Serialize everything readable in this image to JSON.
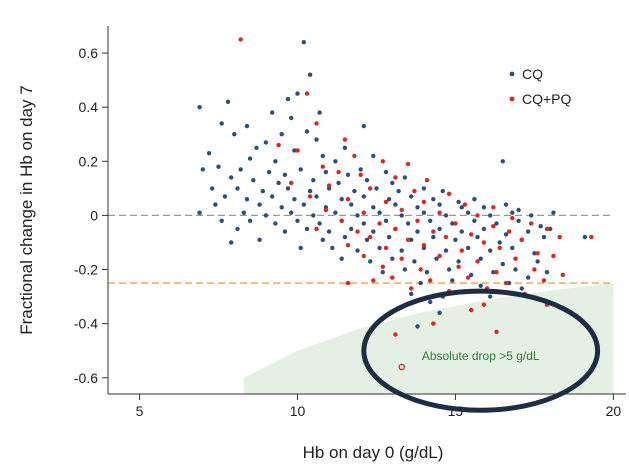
{
  "chart_data": {
    "type": "scatter",
    "title": "",
    "xlabel": "Hb on day 0 (g/dL)",
    "ylabel": "Fractional change in Hb on day 7",
    "xlim": [
      4,
      20.4
    ],
    "ylim": [
      -0.66,
      0.7
    ],
    "x_ticks": [
      5,
      10,
      15,
      20
    ],
    "y_ticks": [
      0.6,
      0.4,
      0.2,
      0,
      -0.2,
      -0.4,
      -0.6
    ],
    "x_tick_labels": [
      "5",
      "10",
      "15",
      "20"
    ],
    "y_tick_labels": [
      "0.6",
      "0.4",
      "0.2",
      "0",
      "-0.2",
      "-0.4",
      "-0.6"
    ],
    "grid": false,
    "legend_position": "top-right",
    "series": [
      {
        "name": "CQ",
        "color": "#2b4f7a",
        "points": [
          [
            10.2,
            0.64
          ],
          [
            10.4,
            0.52
          ],
          [
            10.0,
            0.45
          ],
          [
            9.7,
            0.43
          ],
          [
            7.8,
            0.42
          ],
          [
            6.9,
            0.4
          ],
          [
            9.2,
            0.38
          ],
          [
            9.8,
            0.36
          ],
          [
            10.7,
            0.38
          ],
          [
            8.4,
            0.33
          ],
          [
            9.5,
            0.3
          ],
          [
            10.3,
            0.31
          ],
          [
            7.6,
            0.34
          ],
          [
            8.0,
            0.3
          ],
          [
            10.6,
            0.28
          ],
          [
            12.1,
            0.33
          ],
          [
            9.0,
            0.27
          ],
          [
            8.7,
            0.25
          ],
          [
            11.5,
            0.25
          ],
          [
            9.9,
            0.24
          ],
          [
            7.2,
            0.23
          ],
          [
            8.5,
            0.21
          ],
          [
            9.3,
            0.2
          ],
          [
            10.8,
            0.22
          ],
          [
            11.2,
            0.2
          ],
          [
            12.4,
            0.22
          ],
          [
            16.5,
            0.2
          ],
          [
            7.5,
            0.18
          ],
          [
            8.2,
            0.17
          ],
          [
            9.1,
            0.16
          ],
          [
            9.6,
            0.15
          ],
          [
            10.1,
            0.17
          ],
          [
            10.9,
            0.16
          ],
          [
            11.6,
            0.15
          ],
          [
            12.0,
            0.17
          ],
          [
            12.8,
            0.16
          ],
          [
            7.0,
            0.17
          ],
          [
            7.9,
            0.14
          ],
          [
            8.6,
            0.13
          ],
          [
            9.4,
            0.12
          ],
          [
            10.5,
            0.13
          ],
          [
            11.3,
            0.12
          ],
          [
            12.2,
            0.13
          ],
          [
            13.0,
            0.12
          ],
          [
            13.4,
            0.14
          ],
          [
            7.3,
            0.1
          ],
          [
            8.1,
            0.1
          ],
          [
            8.9,
            0.09
          ],
          [
            9.7,
            0.1
          ],
          [
            10.4,
            0.09
          ],
          [
            11.0,
            0.1
          ],
          [
            11.8,
            0.09
          ],
          [
            12.5,
            0.1
          ],
          [
            13.2,
            0.09
          ],
          [
            14.0,
            0.1
          ],
          [
            14.6,
            0.09
          ],
          [
            7.7,
            0.07
          ],
          [
            8.4,
            0.06
          ],
          [
            9.2,
            0.07
          ],
          [
            9.9,
            0.06
          ],
          [
            10.6,
            0.07
          ],
          [
            11.4,
            0.06
          ],
          [
            12.1,
            0.07
          ],
          [
            12.9,
            0.06
          ],
          [
            13.6,
            0.07
          ],
          [
            14.3,
            0.06
          ],
          [
            15.1,
            0.05
          ],
          [
            15.6,
            0.06
          ],
          [
            7.4,
            0.04
          ],
          [
            8.8,
            0.04
          ],
          [
            9.5,
            0.03
          ],
          [
            10.2,
            0.04
          ],
          [
            10.9,
            0.03
          ],
          [
            11.7,
            0.04
          ],
          [
            12.4,
            0.03
          ],
          [
            13.1,
            0.04
          ],
          [
            13.8,
            0.03
          ],
          [
            14.5,
            0.04
          ],
          [
            15.2,
            0.03
          ],
          [
            15.9,
            0.03
          ],
          [
            16.6,
            0.04
          ],
          [
            17.0,
            0.02
          ],
          [
            6.9,
            0.01
          ],
          [
            8.3,
            0.01
          ],
          [
            9.0,
            0.0
          ],
          [
            9.8,
            0.01
          ],
          [
            10.5,
            0.0
          ],
          [
            11.2,
            0.01
          ],
          [
            11.9,
            0.0
          ],
          [
            12.6,
            0.01
          ],
          [
            13.3,
            0.0
          ],
          [
            14.0,
            0.01
          ],
          [
            14.7,
            0.0
          ],
          [
            15.4,
            0.01
          ],
          [
            16.1,
            0.0
          ],
          [
            16.8,
            0.01
          ],
          [
            17.4,
            0.0
          ],
          [
            18.1,
            0.01
          ],
          [
            7.6,
            -0.02
          ],
          [
            8.5,
            -0.02
          ],
          [
            9.3,
            -0.03
          ],
          [
            10.0,
            -0.02
          ],
          [
            10.7,
            -0.03
          ],
          [
            11.4,
            -0.02
          ],
          [
            12.1,
            -0.03
          ],
          [
            12.8,
            -0.02
          ],
          [
            13.5,
            -0.03
          ],
          [
            14.2,
            -0.02
          ],
          [
            14.9,
            -0.03
          ],
          [
            15.6,
            -0.02
          ],
          [
            16.3,
            -0.03
          ],
          [
            17.0,
            -0.02
          ],
          [
            17.7,
            -0.04
          ],
          [
            8.1,
            -0.05
          ],
          [
            9.6,
            -0.06
          ],
          [
            10.3,
            -0.05
          ],
          [
            11.0,
            -0.06
          ],
          [
            11.7,
            -0.05
          ],
          [
            12.4,
            -0.06
          ],
          [
            13.1,
            -0.05
          ],
          [
            13.8,
            -0.06
          ],
          [
            14.5,
            -0.05
          ],
          [
            15.2,
            -0.06
          ],
          [
            15.9,
            -0.05
          ],
          [
            16.6,
            -0.07
          ],
          [
            17.3,
            -0.06
          ],
          [
            18.0,
            -0.05
          ],
          [
            7.9,
            -0.1
          ],
          [
            8.8,
            -0.09
          ],
          [
            10.8,
            -0.09
          ],
          [
            11.5,
            -0.08
          ],
          [
            12.2,
            -0.09
          ],
          [
            12.9,
            -0.08
          ],
          [
            13.6,
            -0.09
          ],
          [
            14.3,
            -0.08
          ],
          [
            15.0,
            -0.09
          ],
          [
            15.7,
            -0.08
          ],
          [
            16.4,
            -0.1
          ],
          [
            17.1,
            -0.09
          ],
          [
            17.8,
            -0.08
          ],
          [
            19.1,
            -0.08
          ],
          [
            10.1,
            -0.12
          ],
          [
            11.1,
            -0.12
          ],
          [
            11.9,
            -0.13
          ],
          [
            12.6,
            -0.12
          ],
          [
            13.3,
            -0.13
          ],
          [
            14.0,
            -0.12
          ],
          [
            14.7,
            -0.13
          ],
          [
            15.4,
            -0.12
          ],
          [
            16.1,
            -0.13
          ],
          [
            16.8,
            -0.12
          ],
          [
            17.5,
            -0.14
          ],
          [
            11.4,
            -0.16
          ],
          [
            12.3,
            -0.17
          ],
          [
            13.0,
            -0.16
          ],
          [
            13.7,
            -0.17
          ],
          [
            14.4,
            -0.16
          ],
          [
            15.1,
            -0.17
          ],
          [
            15.8,
            -0.16
          ],
          [
            16.5,
            -0.18
          ],
          [
            17.6,
            -0.17
          ],
          [
            12.7,
            -0.21
          ],
          [
            13.4,
            -0.2
          ],
          [
            14.1,
            -0.21
          ],
          [
            14.8,
            -0.2
          ],
          [
            15.5,
            -0.22
          ],
          [
            16.2,
            -0.21
          ],
          [
            16.9,
            -0.2
          ],
          [
            17.9,
            -0.21
          ],
          [
            13.9,
            -0.25
          ],
          [
            14.9,
            -0.24
          ],
          [
            15.8,
            -0.26
          ],
          [
            16.7,
            -0.25
          ],
          [
            17.3,
            -0.23
          ],
          [
            13.6,
            -0.29
          ],
          [
            14.6,
            -0.3
          ],
          [
            15.3,
            -0.28
          ],
          [
            16.1,
            -0.3
          ],
          [
            17.1,
            -0.27
          ],
          [
            14.2,
            -0.32
          ],
          [
            13.8,
            -0.41
          ],
          [
            14.5,
            -0.36
          ]
        ]
      },
      {
        "name": "CQ+PQ",
        "color": "#e8211c",
        "points": [
          [
            8.2,
            0.65
          ],
          [
            10.3,
            0.45
          ],
          [
            10.6,
            0.34
          ],
          [
            11.5,
            0.28
          ],
          [
            9.4,
            0.26
          ],
          [
            10.0,
            0.24
          ],
          [
            11.8,
            0.22
          ],
          [
            12.7,
            0.2
          ],
          [
            13.5,
            0.19
          ],
          [
            10.8,
            0.18
          ],
          [
            11.3,
            0.16
          ],
          [
            12.0,
            0.15
          ],
          [
            13.1,
            0.14
          ],
          [
            14.1,
            0.13
          ],
          [
            9.8,
            0.12
          ],
          [
            11.0,
            0.11
          ],
          [
            12.3,
            0.1
          ],
          [
            13.7,
            0.09
          ],
          [
            14.8,
            0.08
          ],
          [
            10.4,
            0.07
          ],
          [
            11.6,
            0.06
          ],
          [
            12.8,
            0.05
          ],
          [
            14.0,
            0.05
          ],
          [
            15.3,
            0.04
          ],
          [
            16.2,
            0.03
          ],
          [
            10.9,
            0.02
          ],
          [
            12.1,
            0.01
          ],
          [
            13.3,
            0.02
          ],
          [
            14.5,
            0.01
          ],
          [
            15.7,
            0.0
          ],
          [
            16.8,
            -0.01
          ],
          [
            11.4,
            -0.02
          ],
          [
            12.6,
            -0.03
          ],
          [
            13.8,
            -0.02
          ],
          [
            15.0,
            -0.03
          ],
          [
            16.2,
            -0.04
          ],
          [
            17.4,
            -0.03
          ],
          [
            10.6,
            -0.05
          ],
          [
            11.9,
            -0.06
          ],
          [
            13.1,
            -0.05
          ],
          [
            14.3,
            -0.06
          ],
          [
            15.5,
            -0.07
          ],
          [
            16.7,
            -0.06
          ],
          [
            17.9,
            -0.05
          ],
          [
            12.3,
            -0.08
          ],
          [
            13.5,
            -0.09
          ],
          [
            14.7,
            -0.08
          ],
          [
            15.9,
            -0.1
          ],
          [
            17.1,
            -0.09
          ],
          [
            18.3,
            -0.08
          ],
          [
            11.6,
            -0.11
          ],
          [
            12.8,
            -0.12
          ],
          [
            14.0,
            -0.11
          ],
          [
            15.2,
            -0.13
          ],
          [
            16.4,
            -0.12
          ],
          [
            17.6,
            -0.14
          ],
          [
            12.1,
            -0.15
          ],
          [
            13.3,
            -0.16
          ],
          [
            14.5,
            -0.15
          ],
          [
            15.7,
            -0.17
          ],
          [
            16.9,
            -0.16
          ],
          [
            18.1,
            -0.15
          ],
          [
            12.7,
            -0.19
          ],
          [
            13.9,
            -0.2
          ],
          [
            15.1,
            -0.19
          ],
          [
            16.3,
            -0.21
          ],
          [
            17.5,
            -0.2
          ],
          [
            13.0,
            -0.23
          ],
          [
            14.2,
            -0.24
          ],
          [
            15.4,
            -0.23
          ],
          [
            16.6,
            -0.25
          ],
          [
            17.8,
            -0.24
          ],
          [
            13.6,
            -0.27
          ],
          [
            14.8,
            -0.28
          ],
          [
            16.0,
            -0.27
          ],
          [
            17.2,
            -0.29
          ],
          [
            18.4,
            -0.22
          ],
          [
            19.3,
            -0.08
          ],
          [
            15.9,
            -0.33
          ],
          [
            17.9,
            -0.33
          ],
          [
            13.1,
            -0.44
          ],
          [
            14.3,
            -0.4
          ],
          [
            16.3,
            -0.43
          ],
          [
            15.5,
            -0.35
          ],
          [
            11.6,
            -0.25
          ],
          [
            12.4,
            -0.24
          ]
        ]
      }
    ],
    "highlighted_point": {
      "x": 13.3,
      "y": -0.56,
      "style": "open circle",
      "color": "#e8211c"
    },
    "reference_lines": [
      {
        "orientation": "horizontal",
        "y": 0,
        "style": "dashed",
        "color": "#999999"
      },
      {
        "orientation": "horizontal",
        "y": -0.25,
        "style": "dashed",
        "color": "#e09020"
      }
    ],
    "shaded_region": {
      "color": "#e3f0e3",
      "boundary": [
        [
          8.3,
          -0.6
        ],
        [
          10,
          -0.5
        ],
        [
          12,
          -0.417
        ],
        [
          14,
          -0.357
        ],
        [
          16,
          -0.313
        ],
        [
          18,
          -0.278
        ],
        [
          20,
          -0.25
        ]
      ]
    },
    "annotation": {
      "text": "Absolute drop >5 g/dL",
      "x": 15.8,
      "y": -0.52,
      "color": "#2e7d32"
    },
    "ellipse": {
      "cx": 15.8,
      "cy": -0.5,
      "rx": 3.7,
      "ry": 0.22,
      "color": "#1d2d44"
    }
  }
}
